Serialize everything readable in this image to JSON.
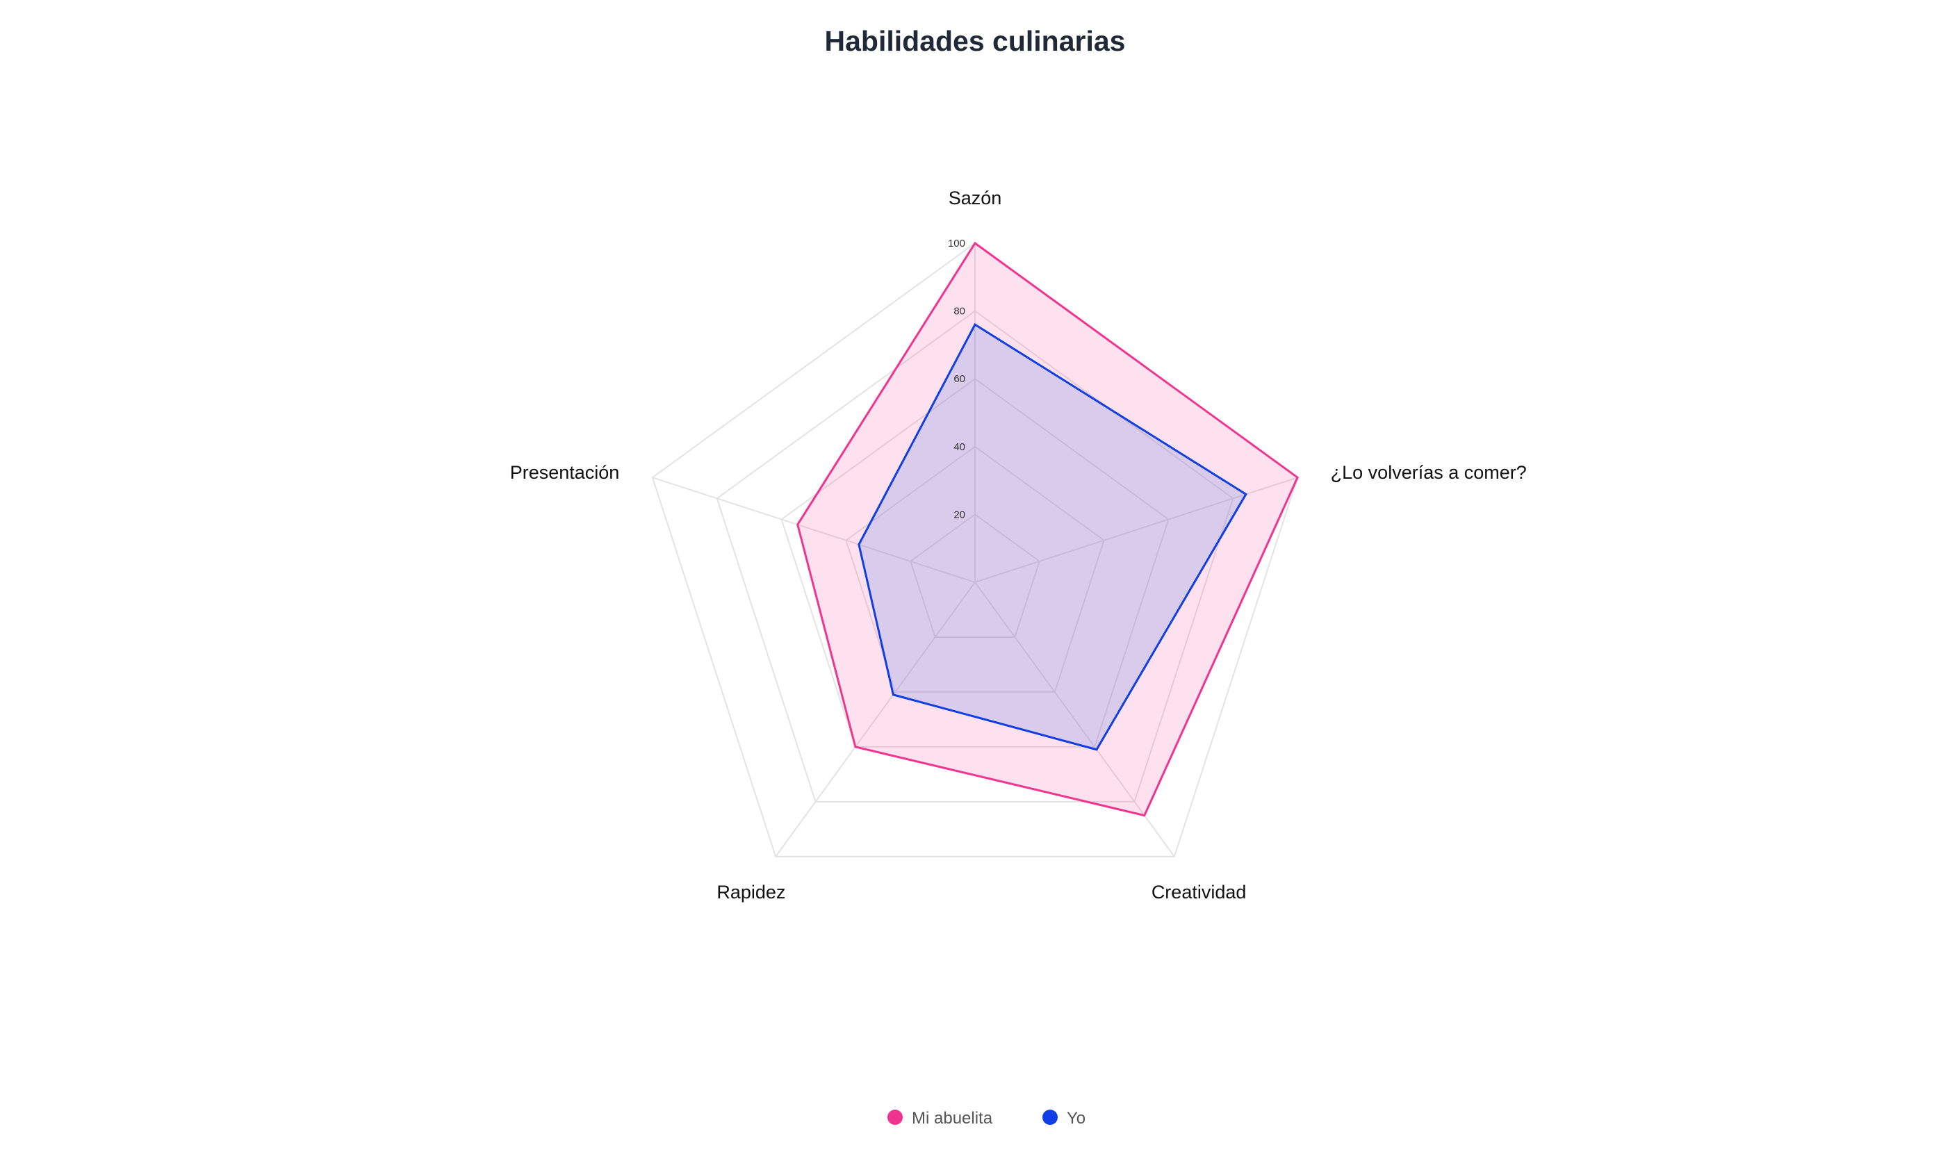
{
  "chart_data": {
    "type": "radar",
    "title": "Habilidades culinarias",
    "axes": [
      "Sazón",
      "¿Lo volverías a comer?",
      "Creatividad",
      "Rapidez",
      "Presentación"
    ],
    "rticks": [
      20,
      40,
      60,
      80,
      100
    ],
    "range": [
      0,
      100
    ],
    "grid": true,
    "legend_position": "bottom-center",
    "series": [
      {
        "name": "Mi abuelita",
        "values": [
          100,
          100,
          85,
          60,
          55
        ],
        "color": "#f0358f",
        "fill": "rgba(240, 53, 143, 0.15)"
      },
      {
        "name": "Yo",
        "values": [
          76,
          84,
          61,
          41,
          36
        ],
        "color": "#0f3ee6",
        "fill": "rgba(110, 140, 230, 0.25)"
      }
    ]
  }
}
